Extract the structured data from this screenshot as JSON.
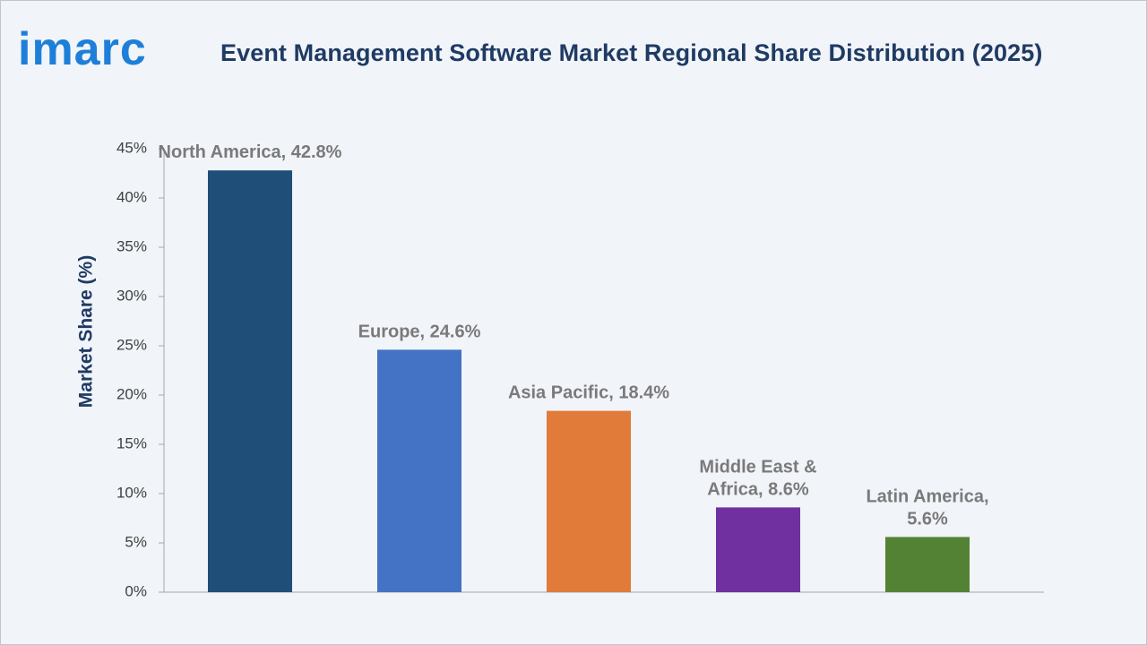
{
  "header": {
    "logo_text": "imarc",
    "title": "Event Management Software Market Regional Share Distribution (2025)"
  },
  "chart_data": {
    "type": "bar",
    "title": "Event Management Software Market Regional Share Distribution (2025)",
    "xlabel": "",
    "ylabel": "Market Share (%)",
    "ylim": [
      0,
      45
    ],
    "yticks": [
      "0%",
      "5%",
      "10%",
      "15%",
      "20%",
      "25%",
      "30%",
      "35%",
      "40%",
      "45%"
    ],
    "grid": false,
    "categories": [
      "North America",
      "Europe",
      "Asia Pacific",
      "Middle East & Africa",
      "Latin America"
    ],
    "values": [
      42.8,
      24.6,
      18.4,
      8.6,
      5.6
    ],
    "data_labels": [
      [
        "North America, 42.8%"
      ],
      [
        "Europe, 24.6%"
      ],
      [
        "Asia Pacific, 18.4%"
      ],
      [
        "Middle East &",
        "Africa, 8.6%"
      ],
      [
        "Latin America,",
        "5.6%"
      ]
    ],
    "colors": [
      "#1f4e79",
      "#4472c4",
      "#e07b39",
      "#7030a0",
      "#548235"
    ]
  }
}
